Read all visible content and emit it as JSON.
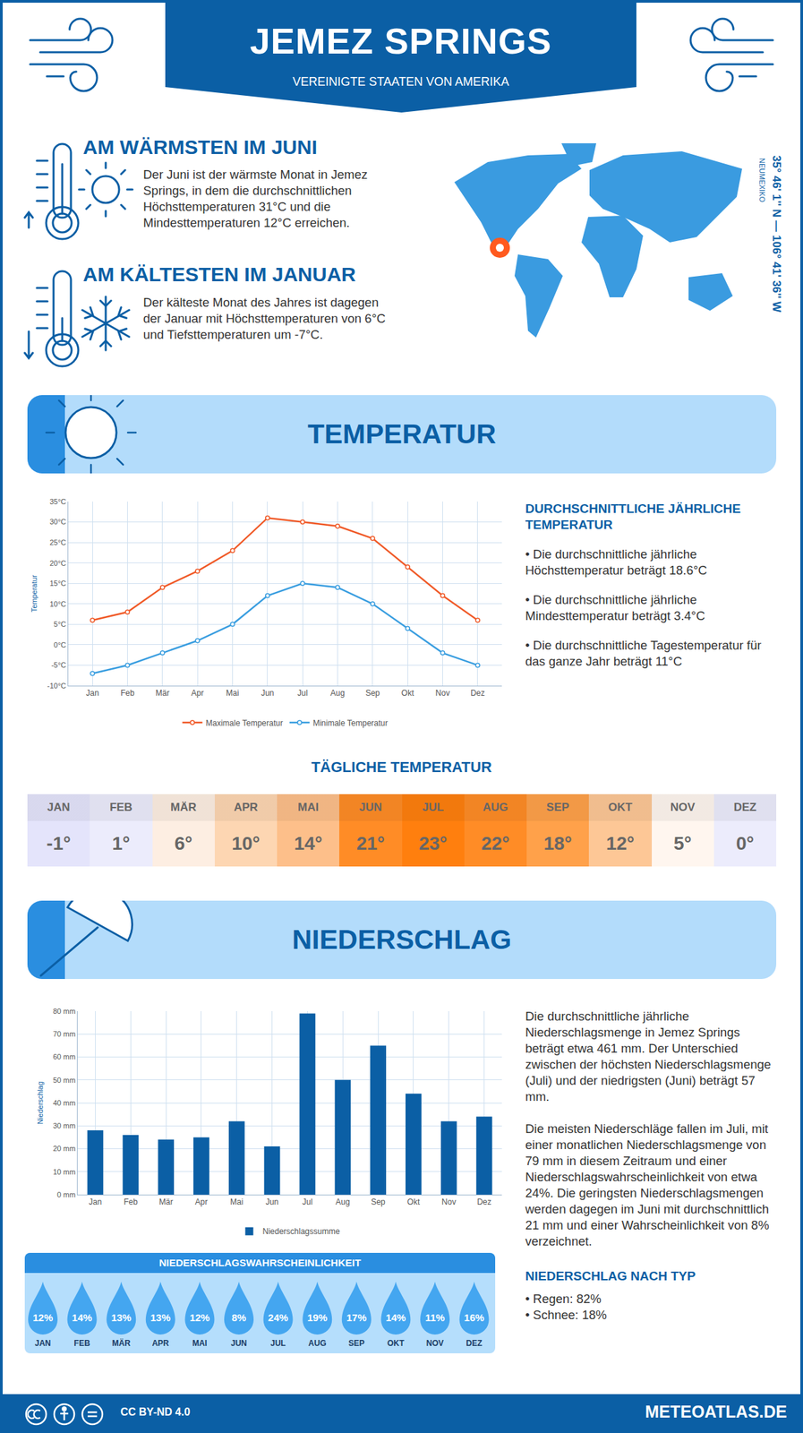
{
  "header": {
    "title": "JEMEZ SPRINGS",
    "subtitle": "VEREINIGTE STAATEN VON AMERIKA"
  },
  "location": {
    "region": "NEUMEXIKO",
    "coordinates": "35° 46' 1'' N — 106° 41' 36'' W"
  },
  "highlights": [
    {
      "title": "AM WÄRMSTEN IM JUNI",
      "text": "Der Juni ist der wärmste Monat in Jemez Springs, in dem die durchschnittlichen Höchsttemperaturen 31°C und die Mindesttemperaturen 12°C erreichen."
    },
    {
      "title": "AM KÄLTESTEN IM JANUAR",
      "text": "Der kälteste Monat des Jahres ist dagegen der Januar mit Höchsttemperaturen von 6°C und Tiefsttemperaturen um -7°C."
    }
  ],
  "temperature_section": {
    "title": "TEMPERATUR",
    "summary_title": "DURCHSCHNITTLICHE JÄHRLICHE TEMPERATUR",
    "summary": [
      "• Die durchschnittliche jährliche Höchsttemperatur beträgt 18.6°C",
      "• Die durchschnittliche jährliche Mindesttemperatur beträgt 3.4°C",
      "• Die durchschnittliche Tagestemperatur für das ganze Jahr beträgt 11°C"
    ]
  },
  "daily_temperature": {
    "title": "TÄGLICHE TEMPERATUR",
    "months": [
      "JAN",
      "FEB",
      "MÄR",
      "APR",
      "MAI",
      "JUN",
      "JUL",
      "AUG",
      "SEP",
      "OKT",
      "NOV",
      "DEZ"
    ],
    "values": [
      "-1°",
      "1°",
      "6°",
      "10°",
      "14°",
      "21°",
      "23°",
      "22°",
      "18°",
      "12°",
      "5°",
      "0°"
    ],
    "colors": [
      "#e4e4fb",
      "#ececfc",
      "#fdeee2",
      "#fdd6b2",
      "#fdbf8a",
      "#ff8c26",
      "#ff7f0e",
      "#ff8c26",
      "#ffa14a",
      "#fdc796",
      "#fff6ef",
      "#ececfc"
    ]
  },
  "precipitation_section": {
    "title": "NIEDERSCHLAG",
    "paragraphs": [
      "Die durchschnittliche jährliche Niederschlagsmenge in Jemez Springs beträgt etwa 461 mm. Der Unterschied zwischen der höchsten Niederschlagsmenge (Juli) und der niedrigsten (Juni) beträgt 57 mm.",
      "Die meisten Niederschläge fallen im Juli, mit einer monatlichen Niederschlagsmenge von 79 mm in diesem Zeitraum und einer Niederschlagswahrscheinlichkeit von etwa 24%. Die geringsten Niederschlagsmengen werden dagegen im Juni mit durchschnittlich 21 mm und einer Wahrscheinlichkeit von 8% verzeichnet."
    ],
    "type_title": "NIEDERSCHLAG NACH TYP",
    "types": [
      "• Regen: 82%",
      "• Schnee: 18%"
    ]
  },
  "precipitation_probability": {
    "title": "NIEDERSCHLAGSWAHRSCHEINLICHKEIT",
    "months": [
      "JAN",
      "FEB",
      "MÄR",
      "APR",
      "MAI",
      "JUN",
      "JUL",
      "AUG",
      "SEP",
      "OKT",
      "NOV",
      "DEZ"
    ],
    "values": [
      "12%",
      "14%",
      "13%",
      "13%",
      "12%",
      "8%",
      "24%",
      "19%",
      "17%",
      "14%",
      "11%",
      "16%"
    ]
  },
  "footer": {
    "license": "CC BY-ND 4.0",
    "site": "METEOATLAS.DE"
  },
  "chart_data": [
    {
      "type": "line",
      "y_label": "Temperatur",
      "categories": [
        "Jan",
        "Feb",
        "Mär",
        "Apr",
        "Mai",
        "Jun",
        "Jul",
        "Aug",
        "Sep",
        "Okt",
        "Nov",
        "Dez"
      ],
      "series": [
        {
          "name": "Maximale Temperatur",
          "color": "#f05a28",
          "marker": "circle",
          "values": [
            6,
            8,
            14,
            18,
            23,
            31,
            30,
            29,
            26,
            19,
            12,
            6
          ]
        },
        {
          "name": "Minimale Temperatur",
          "color": "#3a9ee0",
          "marker": "circle",
          "values": [
            -7,
            -5,
            -2,
            1,
            5,
            12,
            15,
            14,
            10,
            4,
            -2,
            -5
          ]
        }
      ],
      "ylim": [
        -10,
        35
      ],
      "yticks": [
        {
          "value": -10,
          "label": "-10°C"
        },
        {
          "value": -5,
          "label": "-5°C"
        },
        {
          "value": 0,
          "label": "0°C"
        },
        {
          "value": 5,
          "label": "5°C"
        },
        {
          "value": 10,
          "label": "10°C"
        },
        {
          "value": 15,
          "label": "15°C"
        },
        {
          "value": 20,
          "label": "20°C"
        },
        {
          "value": 25,
          "label": "25°C"
        },
        {
          "value": 30,
          "label": "30°C"
        },
        {
          "value": 35,
          "label": "35°C"
        }
      ],
      "grid": true,
      "legend": "bottom"
    },
    {
      "type": "bar",
      "y_label": "Niederschlag",
      "categories": [
        "Jan",
        "Feb",
        "Mär",
        "Apr",
        "Mai",
        "Jun",
        "Jul",
        "Aug",
        "Sep",
        "Okt",
        "Nov",
        "Dez"
      ],
      "series": [
        {
          "name": "Niederschlagssumme",
          "color": "#0b5fa5",
          "values": [
            28,
            26,
            24,
            25,
            32,
            21,
            79,
            50,
            65,
            44,
            32,
            34
          ]
        }
      ],
      "ylim": [
        0,
        80
      ],
      "yticks": [
        {
          "value": 0,
          "label": "0 mm"
        },
        {
          "value": 10,
          "label": "10 mm"
        },
        {
          "value": 20,
          "label": "20 mm"
        },
        {
          "value": 30,
          "label": "30 mm"
        },
        {
          "value": 40,
          "label": "40 mm"
        },
        {
          "value": 50,
          "label": "50 mm"
        },
        {
          "value": 60,
          "label": "60 mm"
        },
        {
          "value": 70,
          "label": "70 mm"
        },
        {
          "value": 80,
          "label": "80 mm"
        }
      ],
      "grid": true,
      "legend": "bottom"
    }
  ]
}
